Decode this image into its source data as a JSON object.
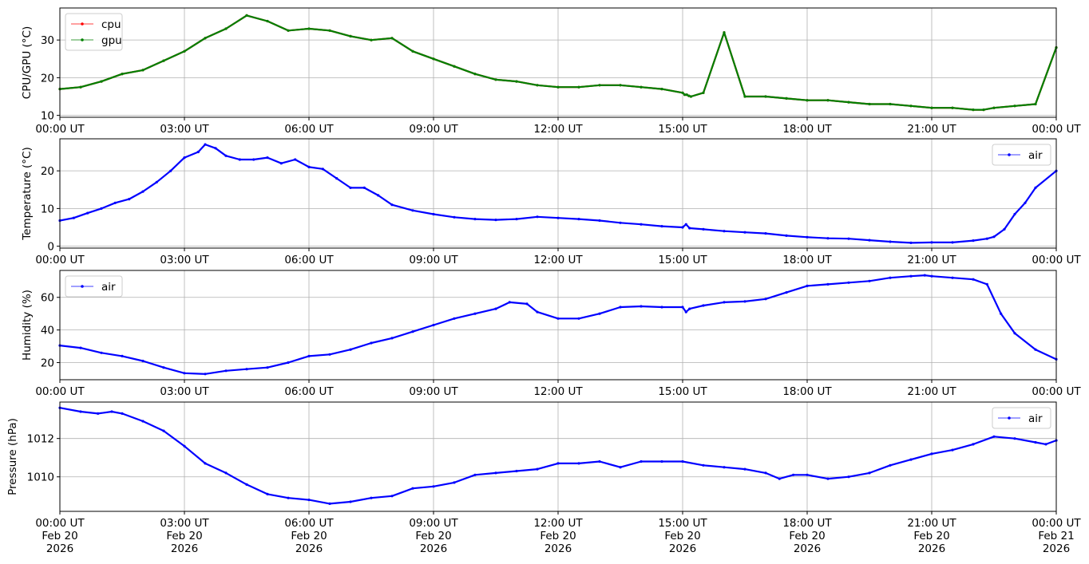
{
  "chart_data": [
    {
      "type": "line",
      "ylabel": "CPU/GPU (°C)",
      "ylim": [
        9.5,
        38.5
      ],
      "yticks": [
        10,
        20,
        30
      ],
      "xlim": [
        "00:00 UT",
        "24:00 UT"
      ],
      "grid": true,
      "legend": "top-left",
      "series": [
        {
          "name": "cpu",
          "color": "#ff0000",
          "x": [
            "00:00",
            "00:30",
            "01:00",
            "01:30",
            "02:00",
            "02:30",
            "03:00",
            "03:30",
            "04:00",
            "04:30",
            "05:00",
            "05:30",
            "06:00",
            "06:30",
            "07:00",
            "07:30",
            "08:00",
            "08:30",
            "09:00",
            "09:30",
            "10:00",
            "10:30",
            "11:00",
            "11:30",
            "12:00",
            "12:30",
            "13:00",
            "13:30",
            "14:00",
            "14:30",
            "15:00",
            "15:03",
            "15:06",
            "15:09",
            "15:12",
            "15:30",
            "16:00",
            "16:30",
            "17:00",
            "17:30",
            "18:00",
            "18:30",
            "19:00",
            "19:30",
            "20:00",
            "20:30",
            "21:00",
            "21:30",
            "22:00",
            "22:15",
            "22:30",
            "23:00",
            "23:30",
            "24:00"
          ],
          "values": [
            17,
            17.5,
            19,
            21,
            22,
            24.5,
            27,
            30.5,
            33,
            36.5,
            35,
            32.5,
            33,
            32.5,
            31,
            30,
            30.5,
            27,
            25,
            23,
            21,
            19.5,
            19,
            18,
            17.5,
            17.5,
            18,
            18,
            17.5,
            17,
            16,
            15.5,
            15.5,
            15.2,
            15,
            16,
            32,
            15,
            15,
            14.5,
            14,
            14,
            13.5,
            13,
            13,
            12.5,
            12,
            12,
            11.5,
            11.5,
            12,
            12.5,
            13,
            28
          ]
        },
        {
          "name": "gpu",
          "color": "#008000",
          "x": [
            "00:00",
            "00:30",
            "01:00",
            "01:30",
            "02:00",
            "02:30",
            "03:00",
            "03:30",
            "04:00",
            "04:30",
            "05:00",
            "05:30",
            "06:00",
            "06:30",
            "07:00",
            "07:30",
            "08:00",
            "08:30",
            "09:00",
            "09:30",
            "10:00",
            "10:30",
            "11:00",
            "11:30",
            "12:00",
            "12:30",
            "13:00",
            "13:30",
            "14:00",
            "14:30",
            "15:00",
            "15:03",
            "15:06",
            "15:09",
            "15:12",
            "15:30",
            "16:00",
            "16:30",
            "17:00",
            "17:30",
            "18:00",
            "18:30",
            "19:00",
            "19:30",
            "20:00",
            "20:30",
            "21:00",
            "21:30",
            "22:00",
            "22:15",
            "22:30",
            "23:00",
            "23:30",
            "24:00"
          ],
          "values": [
            17,
            17.5,
            19,
            21,
            22,
            24.5,
            27,
            30.5,
            33,
            36.5,
            35,
            32.5,
            33,
            32.5,
            31,
            30,
            30.5,
            27,
            25,
            23,
            21,
            19.5,
            19,
            18,
            17.5,
            17.5,
            18,
            18,
            17.5,
            17,
            16,
            15.5,
            15.5,
            15.2,
            15,
            16,
            32,
            15,
            15,
            14.5,
            14,
            14,
            13.5,
            13,
            13,
            12.5,
            12,
            12,
            11.5,
            11.5,
            12,
            12.5,
            13,
            28
          ]
        }
      ]
    },
    {
      "type": "line",
      "ylabel": "Temperature (°C)",
      "ylim": [
        -0.5,
        28.5
      ],
      "yticks": [
        0,
        10,
        20
      ],
      "grid": true,
      "legend": "top-right",
      "series": [
        {
          "name": "air",
          "color": "#0000ff",
          "x": [
            "00:00",
            "00:20",
            "00:40",
            "01:00",
            "01:20",
            "01:40",
            "02:00",
            "02:20",
            "02:40",
            "03:00",
            "03:20",
            "03:30",
            "03:45",
            "04:00",
            "04:20",
            "04:40",
            "05:00",
            "05:20",
            "05:40",
            "06:00",
            "06:20",
            "06:40",
            "07:00",
            "07:20",
            "07:40",
            "08:00",
            "08:30",
            "09:00",
            "09:30",
            "10:00",
            "10:30",
            "11:00",
            "11:30",
            "12:00",
            "12:30",
            "13:00",
            "13:30",
            "14:00",
            "14:30",
            "15:00",
            "15:05",
            "15:10",
            "15:30",
            "16:00",
            "16:30",
            "17:00",
            "17:30",
            "18:00",
            "18:30",
            "19:00",
            "19:30",
            "20:00",
            "20:30",
            "21:00",
            "21:30",
            "22:00",
            "22:20",
            "22:30",
            "22:45",
            "23:00",
            "23:15",
            "23:30",
            "24:00"
          ],
          "values": [
            6.8,
            7.5,
            8.8,
            10,
            11.5,
            12.5,
            14.5,
            17,
            20,
            23.5,
            25,
            27,
            26,
            24,
            23,
            23,
            23.5,
            22,
            23,
            21,
            20.5,
            18,
            15.5,
            15.5,
            13.5,
            11,
            9.5,
            8.5,
            7.7,
            7.2,
            7,
            7.2,
            7.8,
            7.5,
            7.2,
            6.8,
            6.2,
            5.8,
            5.3,
            5.0,
            5.8,
            4.8,
            4.5,
            4.0,
            3.7,
            3.4,
            2.8,
            2.4,
            2.1,
            2.0,
            1.6,
            1.2,
            0.9,
            1.0,
            1.0,
            1.5,
            2.0,
            2.5,
            4.5,
            8.5,
            11.5,
            15.5,
            20
          ]
        }
      ]
    },
    {
      "type": "line",
      "ylabel": "Humidity (%)",
      "ylim": [
        9.5,
        76.5
      ],
      "yticks": [
        20,
        40,
        60
      ],
      "grid": true,
      "legend": "top-left",
      "series": [
        {
          "name": "air",
          "color": "#0000ff",
          "x": [
            "00:00",
            "00:30",
            "01:00",
            "01:30",
            "02:00",
            "02:30",
            "03:00",
            "03:30",
            "04:00",
            "04:30",
            "05:00",
            "05:30",
            "06:00",
            "06:30",
            "07:00",
            "07:30",
            "08:00",
            "08:30",
            "09:00",
            "09:30",
            "10:00",
            "10:30",
            "10:50",
            "11:15",
            "11:30",
            "12:00",
            "12:30",
            "13:00",
            "13:30",
            "14:00",
            "14:30",
            "15:00",
            "15:05",
            "15:10",
            "15:30",
            "16:00",
            "16:30",
            "17:00",
            "17:30",
            "18:00",
            "18:30",
            "19:00",
            "19:30",
            "20:00",
            "20:30",
            "20:50",
            "21:00",
            "21:30",
            "22:00",
            "22:20",
            "22:40",
            "23:00",
            "23:30",
            "24:00"
          ],
          "values": [
            30.5,
            29,
            26,
            24,
            21,
            17,
            13.5,
            13,
            15,
            16,
            17,
            20,
            24,
            25,
            28,
            32,
            35,
            39,
            43,
            47,
            50,
            53,
            57,
            56,
            51,
            47,
            47,
            50,
            54,
            54.5,
            54,
            54,
            51,
            53,
            55,
            57,
            57.5,
            59,
            63,
            67,
            68,
            69,
            70,
            72,
            73,
            73.5,
            73,
            72,
            71,
            68,
            50,
            38,
            28,
            22
          ]
        }
      ]
    },
    {
      "type": "line",
      "ylabel": "Pressure (hPa)",
      "ylim": [
        1008.2,
        1013.9
      ],
      "yticks": [
        1010,
        1012
      ],
      "grid": true,
      "legend": "top-right",
      "series": [
        {
          "name": "air",
          "color": "#0000ff",
          "x": [
            "00:00",
            "00:30",
            "00:55",
            "01:15",
            "01:30",
            "02:00",
            "02:30",
            "03:00",
            "03:30",
            "04:00",
            "04:30",
            "05:00",
            "05:30",
            "06:00",
            "06:30",
            "07:00",
            "07:30",
            "08:00",
            "08:30",
            "09:00",
            "09:30",
            "10:00",
            "10:30",
            "11:00",
            "11:30",
            "12:00",
            "12:30",
            "13:00",
            "13:30",
            "14:00",
            "14:30",
            "15:00",
            "15:30",
            "16:00",
            "16:30",
            "17:00",
            "17:20",
            "17:40",
            "18:00",
            "18:30",
            "19:00",
            "19:30",
            "20:00",
            "20:30",
            "21:00",
            "21:30",
            "22:00",
            "22:30",
            "23:00",
            "23:30",
            "23:45",
            "24:00"
          ],
          "values": [
            1013.6,
            1013.4,
            1013.3,
            1013.4,
            1013.3,
            1012.9,
            1012.4,
            1011.6,
            1010.7,
            1010.2,
            1009.6,
            1009.1,
            1008.9,
            1008.8,
            1008.6,
            1008.7,
            1008.9,
            1009.0,
            1009.4,
            1009.5,
            1009.7,
            1010.1,
            1010.2,
            1010.3,
            1010.4,
            1010.7,
            1010.7,
            1010.8,
            1010.5,
            1010.8,
            1010.8,
            1010.8,
            1010.6,
            1010.5,
            1010.4,
            1010.2,
            1009.9,
            1010.1,
            1010.1,
            1009.9,
            1010.0,
            1010.2,
            1010.6,
            1010.9,
            1011.2,
            1011.4,
            1011.7,
            1012.1,
            1012.0,
            1011.8,
            1011.7,
            1011.9
          ]
        }
      ]
    }
  ],
  "x_axis": {
    "tick_labels": [
      "00:00 UT",
      "03:00 UT",
      "06:00 UT",
      "09:00 UT",
      "12:00 UT",
      "15:00 UT",
      "18:00 UT",
      "21:00 UT",
      "00:00 UT"
    ],
    "date_labels": [
      "Feb 20",
      "Feb 20",
      "Feb 20",
      "Feb 20",
      "Feb 20",
      "Feb 20",
      "Feb 20",
      "Feb 20",
      "Feb 21"
    ],
    "year_labels": [
      "2026",
      "2026",
      "2026",
      "2026",
      "2026",
      "2026",
      "2026",
      "2026",
      "2026"
    ]
  }
}
